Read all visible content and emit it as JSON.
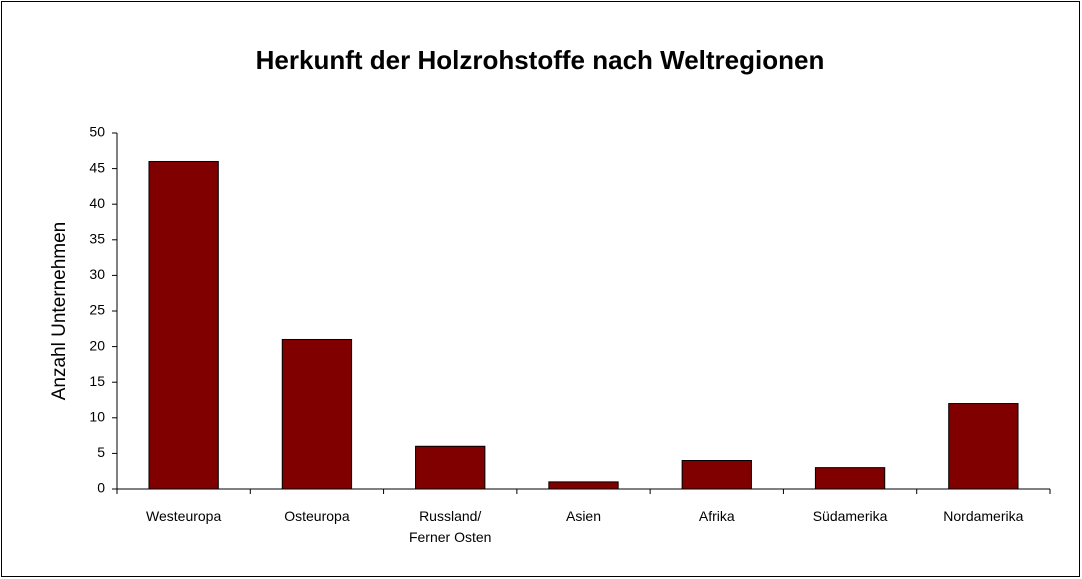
{
  "chart_data": {
    "type": "bar",
    "title": "Herkunft der Holzrohstoffe nach Weltregionen",
    "y_label": "Anzahl Unternehmen",
    "categories": [
      "Westeuropa",
      "Osteuropa",
      "Russland/\nFerner Osten",
      "Asien",
      "Afrika",
      "Südamerika",
      "Nordamerika"
    ],
    "values": [
      46,
      21,
      6,
      1,
      4,
      3,
      12
    ],
    "color": "#800000",
    "ylim": [
      0,
      50
    ],
    "yticks": [
      0,
      5,
      10,
      15,
      20,
      25,
      30,
      35,
      40,
      45,
      50
    ],
    "grid": false
  }
}
